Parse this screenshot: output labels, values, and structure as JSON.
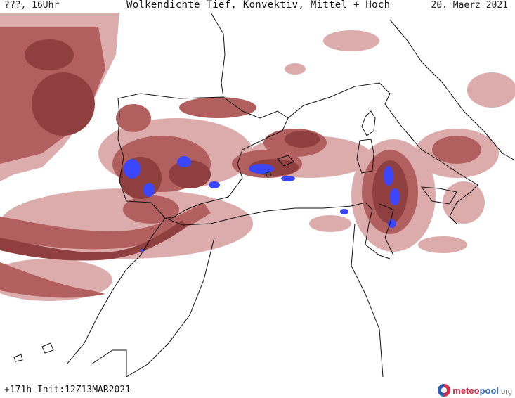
{
  "header": {
    "run_label": "???, 16Uhr",
    "title": "Wolkendichte  Tief, Konvektiv, Mittel + Hoch",
    "date": "20. Maerz 2021"
  },
  "footer": {
    "init_label": "+171h  Init:12Z13MAR2021"
  },
  "logo": {
    "part1": "meteo",
    "part2": "pool",
    "part3": ".org"
  },
  "colors": {
    "cloud_dense": "#8f3f3f",
    "cloud_mid": "#b25f5f",
    "cloud_light": "#d9a3a3",
    "convective": "#3a46ff",
    "coastline": "#111111",
    "background": "#ffffff"
  }
}
